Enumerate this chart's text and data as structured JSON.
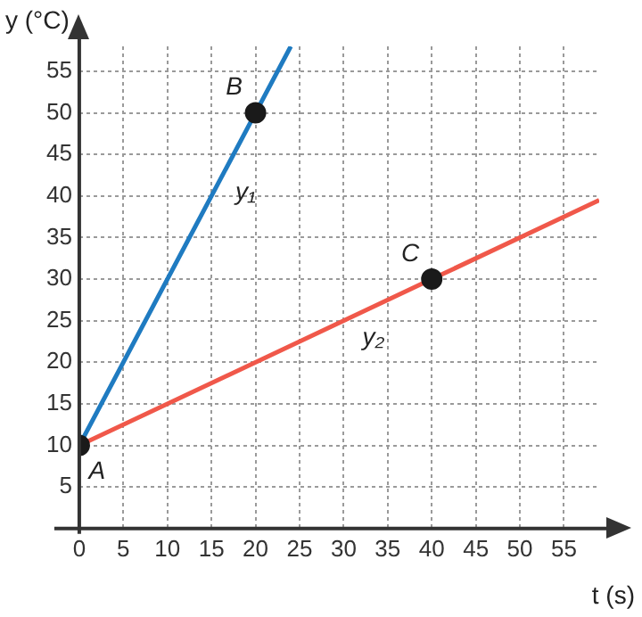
{
  "chart_data": {
    "type": "line",
    "xlabel": "t (s)",
    "ylabel": "y (°C)",
    "xlim": [
      0,
      59
    ],
    "ylim": [
      0,
      58
    ],
    "xticks": [
      0,
      5,
      10,
      15,
      20,
      25,
      30,
      35,
      40,
      45,
      50,
      55
    ],
    "yticks": [
      5,
      10,
      15,
      20,
      25,
      30,
      35,
      40,
      45,
      50,
      55
    ],
    "grid": true,
    "legend": false,
    "series": [
      {
        "name": "y₁",
        "color": "#1f7bc1",
        "x": [
          0,
          20,
          24
        ],
        "values": [
          10,
          50,
          58
        ],
        "marker": "none"
      },
      {
        "name": "y₂",
        "color": "#f0584a",
        "x": [
          0,
          40,
          59
        ],
        "values": [
          10,
          30,
          39.5
        ],
        "marker": "none"
      },
      {
        "type": "scatter",
        "color": "#1a1a1a",
        "x": [
          0,
          20,
          40
        ],
        "values": [
          10,
          50,
          30
        ],
        "marker": "circle"
      }
    ],
    "annotations": [
      {
        "text": "A",
        "x": 0,
        "y": 10
      },
      {
        "text": "B",
        "x": 20,
        "y": 50
      },
      {
        "text": "C",
        "x": 40,
        "y": 30
      }
    ]
  }
}
